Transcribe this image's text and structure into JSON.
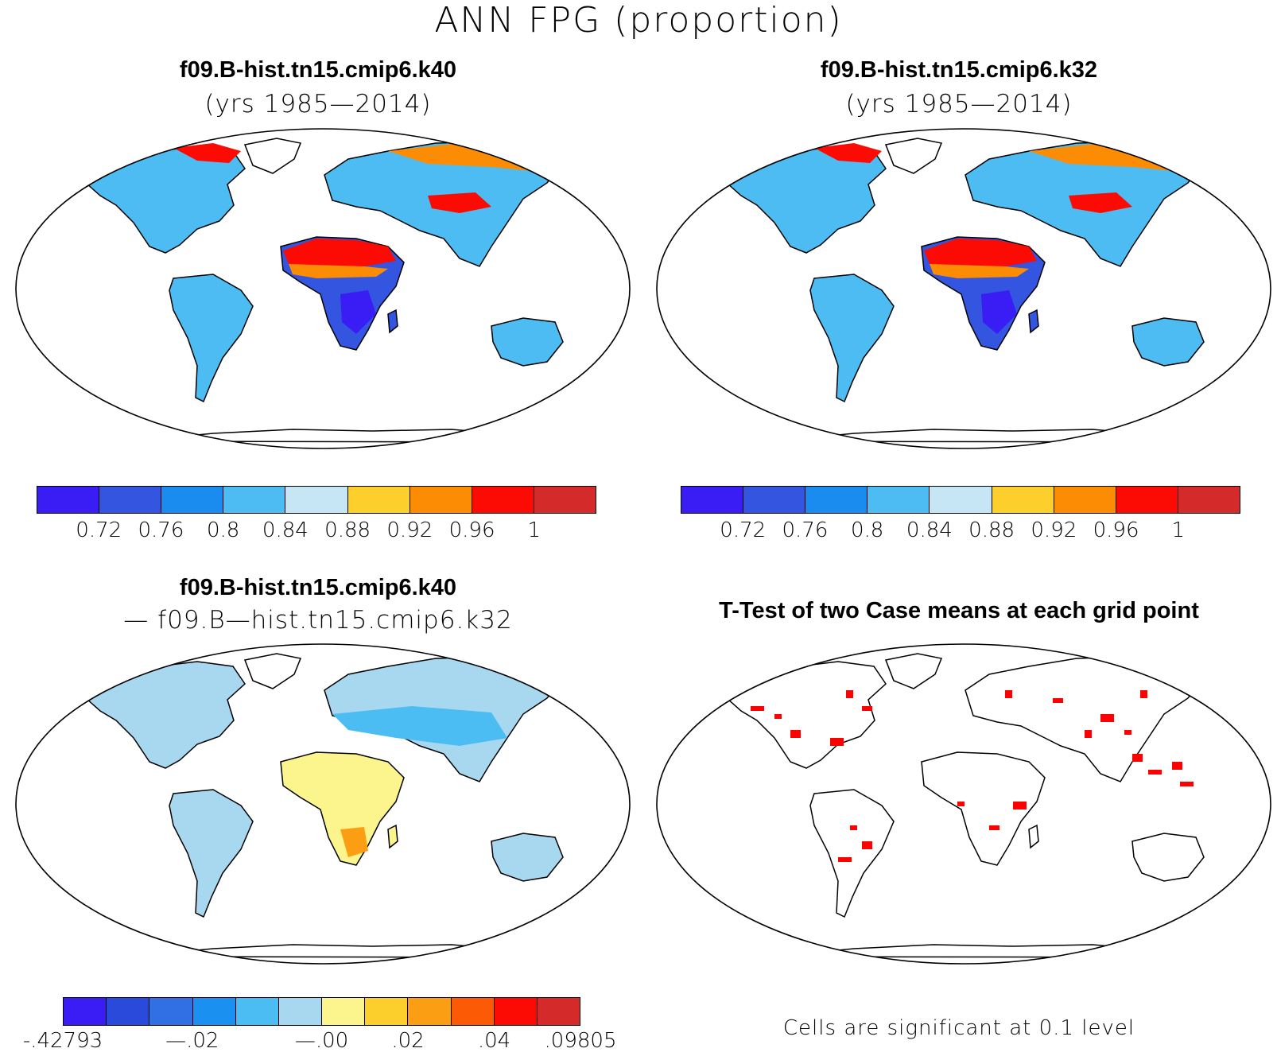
{
  "figure": {
    "title": "ANN FPG (proportion)"
  },
  "panels": [
    {
      "title": "f09.B-hist.tn15.cmip6.k40",
      "subtitle": "(yrs 1985—2014)"
    },
    {
      "title": "f09.B-hist.tn15.cmip6.k32",
      "subtitle": "(yrs 1985—2014)"
    },
    {
      "title": "f09.B-hist.tn15.cmip6.k40",
      "subtitle": "— f09.B—hist.tn15.cmip6.k32"
    },
    {
      "title": "T-Test of two Case means at each grid point",
      "footnote": "Cells are significant at 0.1 level"
    }
  ],
  "colorbars": {
    "abs": {
      "colors": [
        "#3a1cf5",
        "#3355e0",
        "#1a8cf0",
        "#4dbcf2",
        "#c6e6f5",
        "#fccf2c",
        "#fc8c04",
        "#fc0b04",
        "#d42a2a"
      ],
      "ticks": [
        "0.72",
        "0.76",
        "0.8",
        "0.84",
        "0.88",
        "0.92",
        "0.96",
        "1"
      ]
    },
    "diff": {
      "colors": [
        "#3a1cf5",
        "#2a4adc",
        "#3170e4",
        "#1a90f0",
        "#4cbdf2",
        "#a8d8f0",
        "#fcf48c",
        "#fccf2c",
        "#fc9e14",
        "#fc5a04",
        "#fc0b04",
        "#d42a2a"
      ],
      "ticks": [
        "-.42793",
        "—.02",
        "—.00",
        ".02",
        ".04",
        ".09805"
      ]
    }
  },
  "colors": {
    "significant": "#ff0000",
    "coastline": "#000000"
  }
}
